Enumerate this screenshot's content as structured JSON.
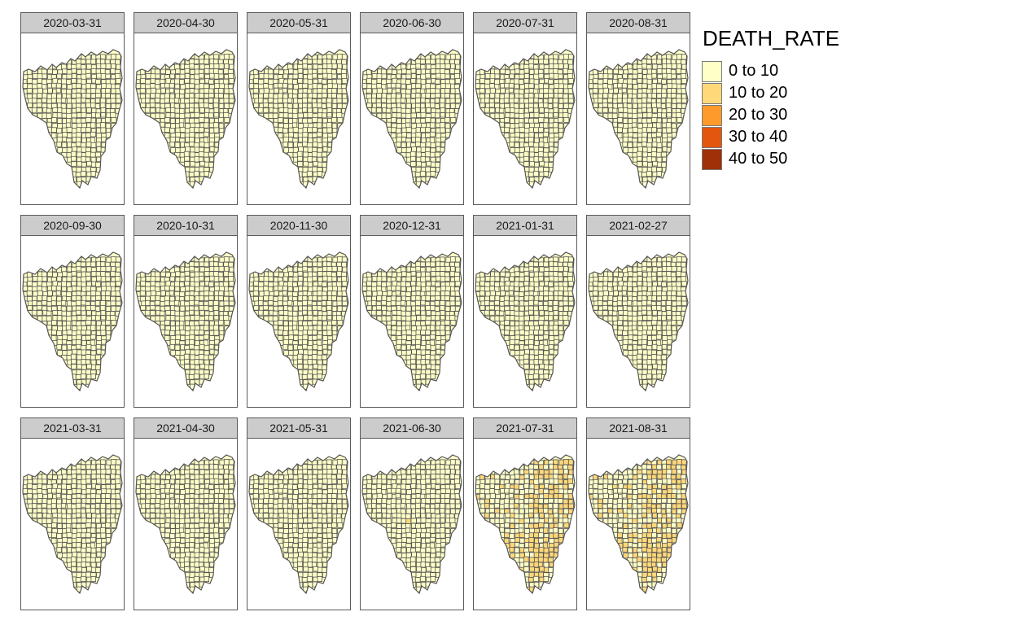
{
  "map": {
    "legend": {
      "title": "DEATH_RATE",
      "classes": [
        {
          "label": "0 to 10",
          "color": "#ffffc8"
        },
        {
          "label": "10 to 20",
          "color": "#ffd87a"
        },
        {
          "label": "20 to 30",
          "color": "#fe9a2c"
        },
        {
          "label": "30 to 40",
          "color": "#e2560f"
        },
        {
          "label": "40 to 50",
          "color": "#9f3008"
        }
      ]
    },
    "border_color": "#555555",
    "panels": [
      {
        "date": "2020-03-31",
        "level": 0
      },
      {
        "date": "2020-04-30",
        "level": 0
      },
      {
        "date": "2020-05-31",
        "level": 0
      },
      {
        "date": "2020-06-30",
        "level": 0
      },
      {
        "date": "2020-07-31",
        "level": 0
      },
      {
        "date": "2020-08-31",
        "level": 0
      },
      {
        "date": "2020-09-30",
        "level": 0
      },
      {
        "date": "2020-10-31",
        "level": 0
      },
      {
        "date": "2020-11-30",
        "level": 0
      },
      {
        "date": "2020-12-31",
        "level": 0
      },
      {
        "date": "2021-01-31",
        "level": 0
      },
      {
        "date": "2021-02-27",
        "level": 0
      },
      {
        "date": "2021-03-31",
        "level": 1
      },
      {
        "date": "2021-04-30",
        "level": 1
      },
      {
        "date": "2021-05-31",
        "level": 1
      },
      {
        "date": "2021-06-30",
        "level": 2
      },
      {
        "date": "2021-07-31",
        "level": 4
      },
      {
        "date": "2021-08-31",
        "level": 4
      }
    ]
  }
}
